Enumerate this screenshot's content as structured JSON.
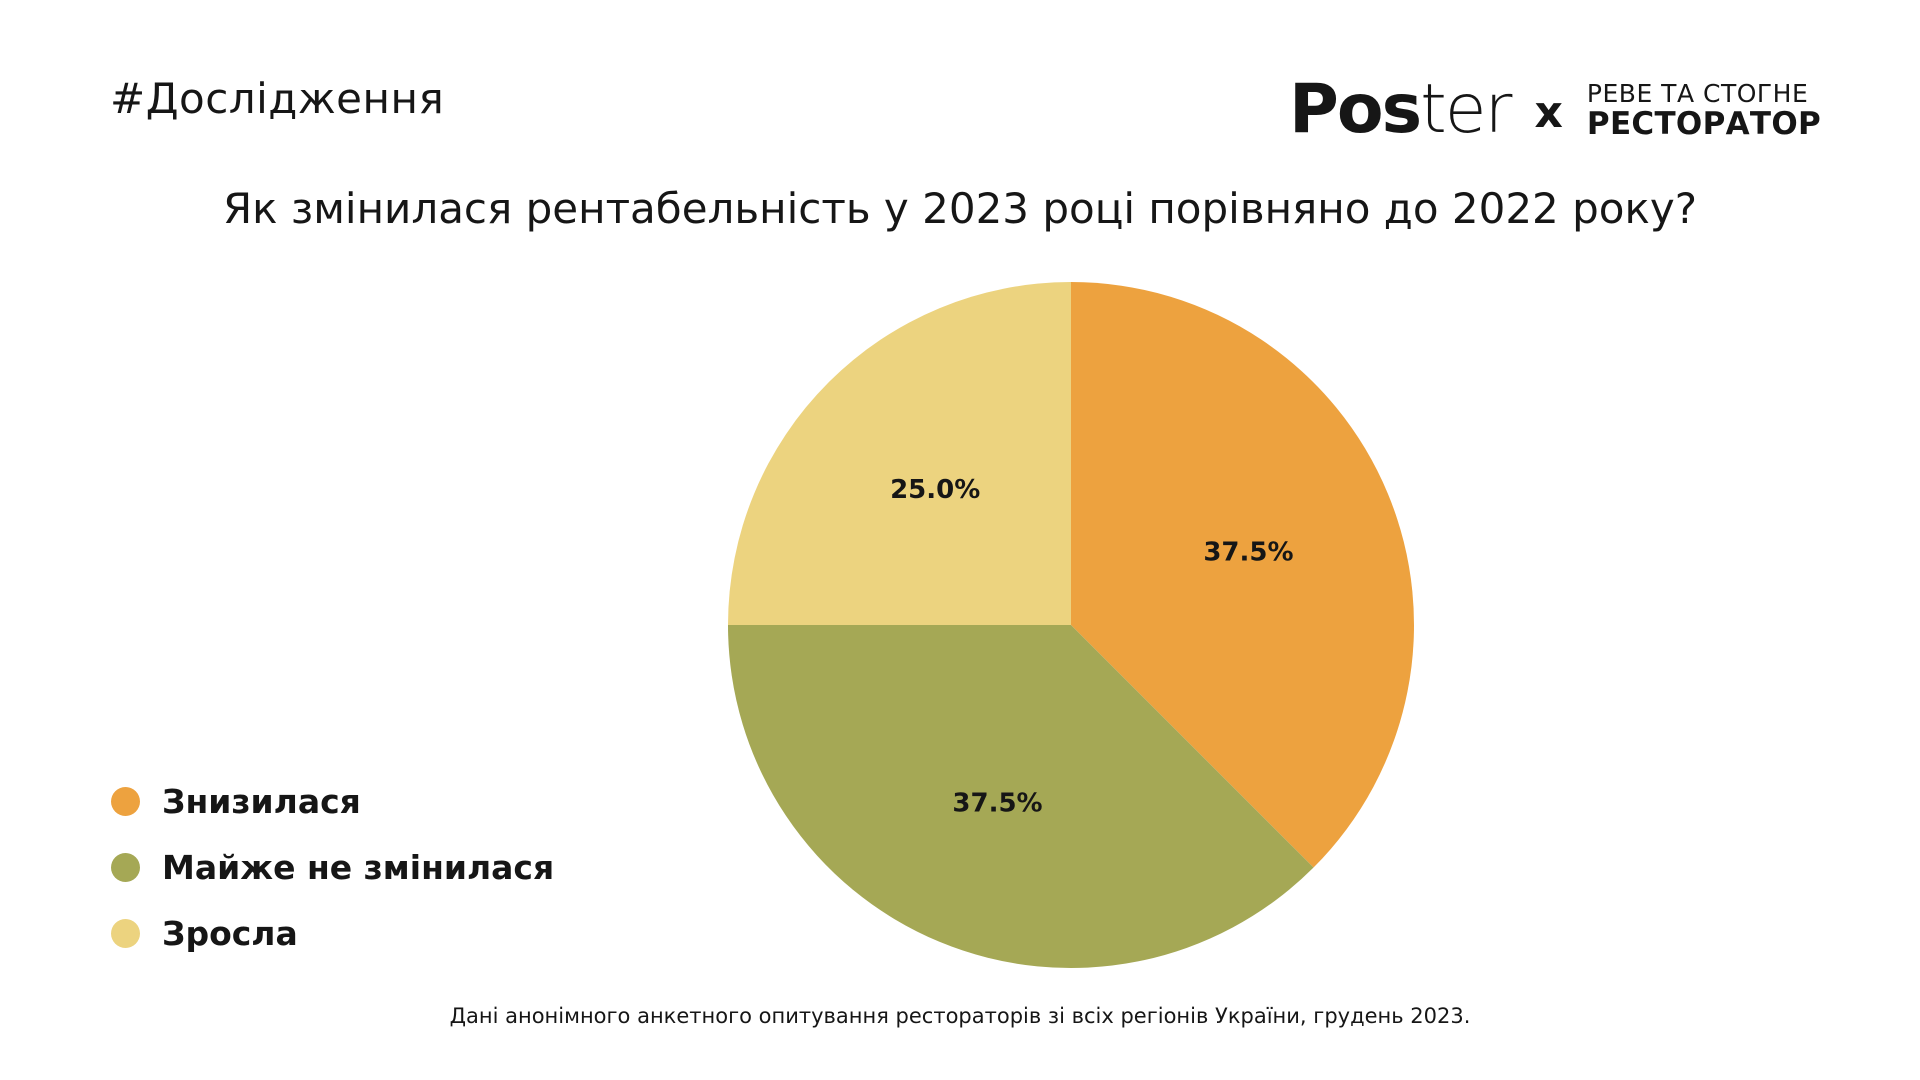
{
  "header": {
    "tag": "#Дослідження",
    "logo": {
      "poster_bold": "Pos",
      "poster_light": "ter",
      "separator": "x",
      "partner_top": "РЕВЕ ТА СТОГНЕ",
      "partner_bottom": "РЕСТОРАТОР"
    }
  },
  "footer": {
    "note": "Дані анонімного анкетного опитування рестораторів зі всіх регіонів України, грудень 2023."
  },
  "chart_data": {
    "type": "pie",
    "title": "Як змінилася рентабельність у 2023 році порівняно до 2022 року?",
    "categories": [
      "Знизилася",
      "Майже не змінилася",
      "Зросла"
    ],
    "values": [
      37.5,
      37.5,
      25.0
    ],
    "labels": [
      "37.5%",
      "37.5%",
      "25.0%"
    ],
    "colors": [
      "#EDA23F",
      "#A5A855",
      "#ECD37F"
    ],
    "start_angle": "12 o'clock",
    "direction": "clockwise",
    "legend_position": "bottom-left"
  }
}
